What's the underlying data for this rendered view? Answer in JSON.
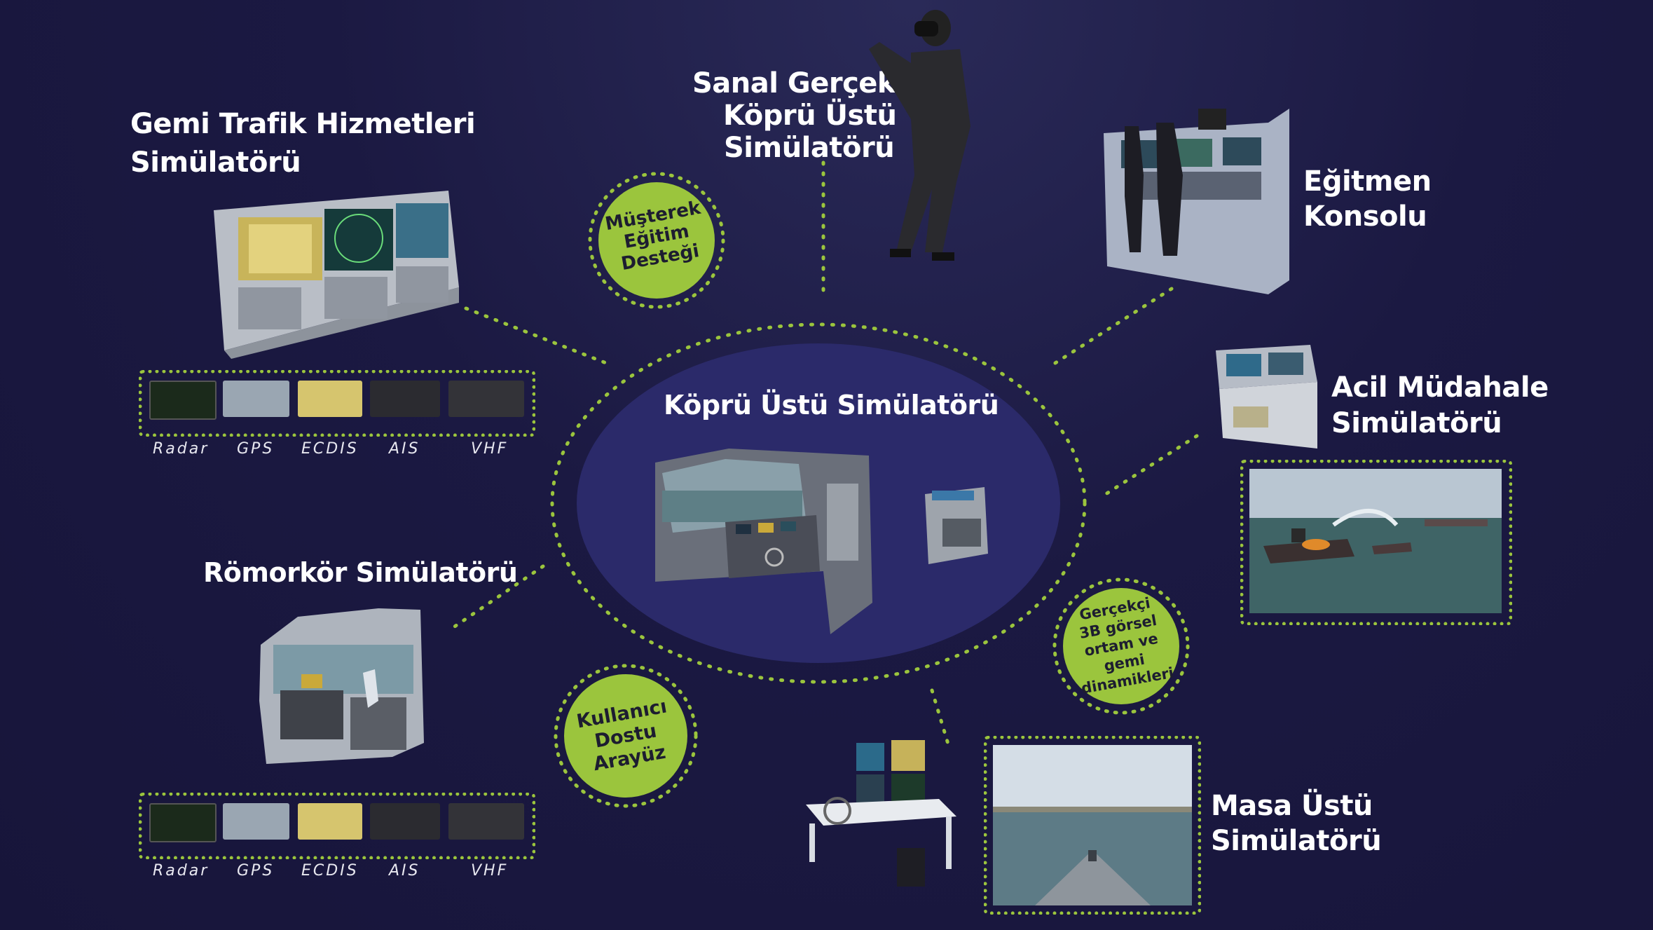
{
  "center": {
    "title": "Köprü Üstü Simülatörü"
  },
  "nodes": {
    "vts": {
      "line1": "Gemi Trafik Hizmetleri",
      "line2": "Simülatörü"
    },
    "vr": {
      "line1": "Sanal Gerçeklik",
      "line2": "Köprü Üstü",
      "line3": "Simülatörü"
    },
    "instructor": {
      "line1": "Eğitmen",
      "line2": "Konsolu"
    },
    "emergency": {
      "line1": "Acil Müdahale",
      "line2": "Simülatörü"
    },
    "tug": {
      "title": "Römorkör Simülatörü"
    },
    "desktop": {
      "line1": "Masa Üstü",
      "line2": "Simülatörü"
    }
  },
  "badges": {
    "joint": [
      "Müşterek",
      "Eğitim",
      "Desteği"
    ],
    "realistic": [
      "Gerçekçi",
      "3B görsel",
      "ortam ve",
      "gemi",
      "dinamikleri"
    ],
    "friendly": [
      "Kullanıcı",
      "Dostu",
      "Arayüz"
    ]
  },
  "devices_top": [
    "Radar",
    "GPS",
    "ECDIS",
    "AIS",
    "VHF"
  ],
  "devices_bottom": [
    "Radar",
    "GPS",
    "ECDIS",
    "AIS",
    "VHF"
  ],
  "colors": {
    "background": "#1a1840",
    "accent": "#9bc53d",
    "ellipse": "#2b2a6a",
    "text": "#ffffff"
  }
}
